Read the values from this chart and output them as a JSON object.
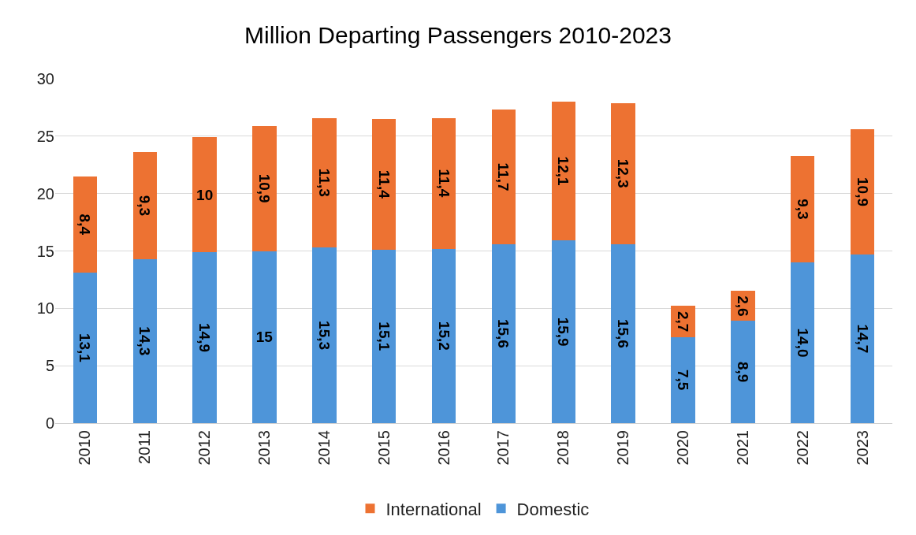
{
  "chart_data": {
    "type": "bar",
    "title": "Million Departing Passengers 2010-2023",
    "stacked": true,
    "categories": [
      "2010",
      "2011",
      "2012",
      "2013",
      "2014",
      "2015",
      "2016",
      "2017",
      "2018",
      "2019",
      "2020",
      "2021",
      "2022",
      "2023"
    ],
    "series": [
      {
        "name": "Domestic",
        "color": "#4e95d9",
        "values": [
          13.1,
          14.3,
          14.9,
          15,
          15.3,
          15.1,
          15.2,
          15.6,
          15.9,
          15.6,
          7.5,
          8.9,
          14.0,
          14.7
        ],
        "value_labels": [
          "13,1",
          "14,3",
          "14,9",
          "15",
          "15,3",
          "15,1",
          "15,2",
          "15,6",
          "15,9",
          "15,6",
          "7,5",
          "8,9",
          "14,0",
          "14,7"
        ]
      },
      {
        "name": "International",
        "color": "#ed7232",
        "values": [
          8.4,
          9.3,
          10,
          10.9,
          11.3,
          11.4,
          11.4,
          11.7,
          12.1,
          12.3,
          2.7,
          2.6,
          9.3,
          10.9
        ],
        "value_labels": [
          "8,4",
          "9,3",
          "10",
          "10,9",
          "11,3",
          "11,4",
          "11,4",
          "11,7",
          "12,1",
          "12,3",
          "2,7",
          "2,6",
          "9,3",
          "10,9"
        ]
      }
    ],
    "ylim": [
      0,
      30
    ],
    "yticks": [
      0,
      5,
      10,
      15,
      20,
      25,
      30
    ],
    "grid": "y",
    "legend": "bottom"
  }
}
